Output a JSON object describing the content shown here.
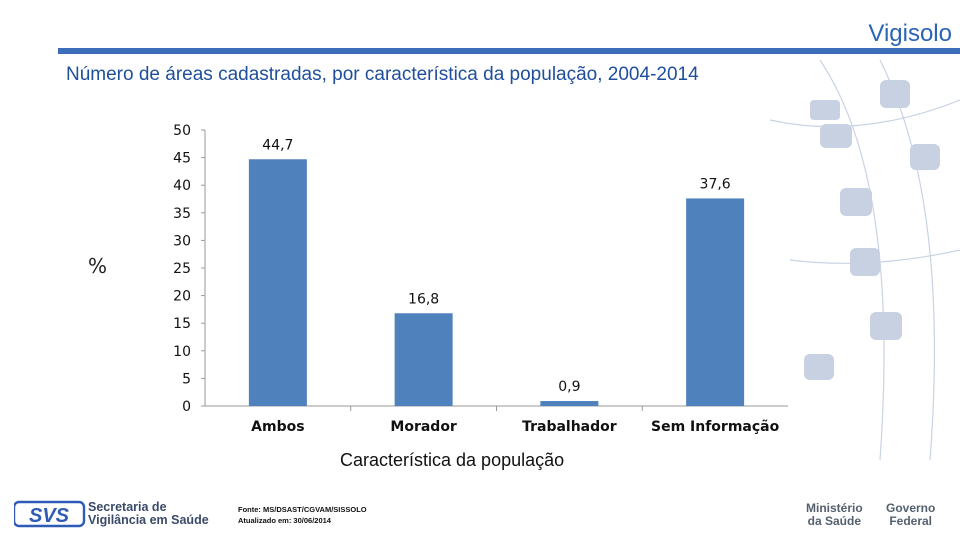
{
  "header": {
    "brand": "Vigisolo"
  },
  "chart_data": {
    "type": "bar",
    "title": "Número de áreas cadastradas, por característica da população, 2004-2014",
    "xlabel": "Característica da população",
    "ylabel": "%",
    "categories": [
      "Ambos",
      "Morador",
      "Trabalhador",
      "Sem Informação"
    ],
    "values": [
      44.7,
      16.8,
      0.9,
      37.6
    ],
    "value_labels": [
      "44,7",
      "16,8",
      "0,9",
      "37,6"
    ],
    "yticks": [
      "0",
      "5",
      "10",
      "15",
      "20",
      "25",
      "30",
      "35",
      "40",
      "45",
      "50"
    ],
    "ylim": [
      0,
      50
    ],
    "grid": false,
    "bar_color": "#4f81bd"
  },
  "footer": {
    "org_line1": "Secretaria de",
    "org_line2": "Vigilância em Saúde",
    "source_line1": "Fonte: MS/DSAST/CGVAM/SISSOLO",
    "source_line2": "Atualizado em: 30/06/2014",
    "ministry_line1": "Ministério",
    "ministry_line2": "da Saúde",
    "gov_line1": "Governo",
    "gov_line2": "Federal"
  }
}
